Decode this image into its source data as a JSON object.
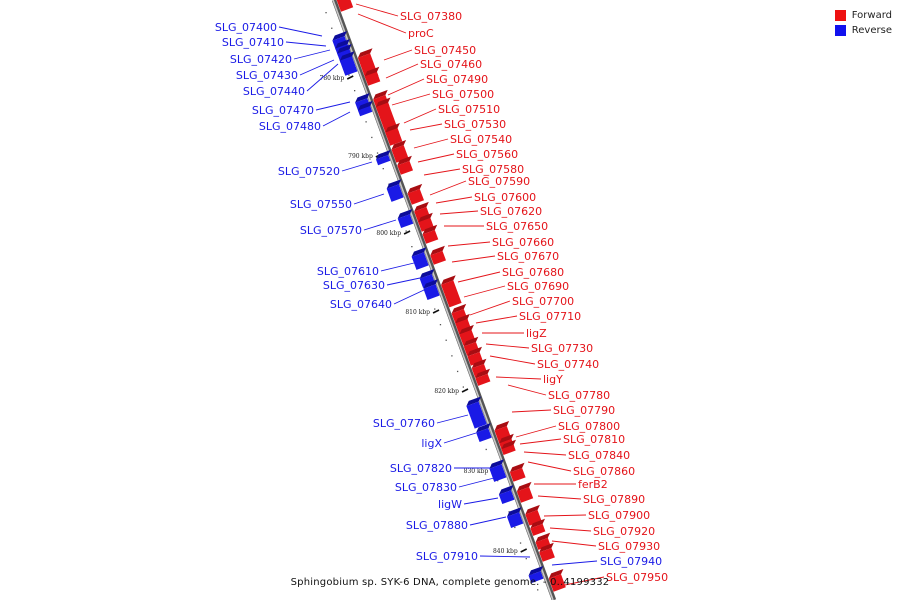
{
  "caption": "Sphingobium sp. SYK-6 DNA, complete genome. - 0..4199332",
  "legend": [
    {
      "label": "Forward",
      "color": "#ee1111"
    },
    {
      "label": "Reverse",
      "color": "#1111ee"
    }
  ],
  "colors": {
    "forward": "#e4141a",
    "reverse": "#1a1ae6",
    "backbone": "#8a8a8a"
  },
  "ticks": [
    "780 kbp",
    "790 kbp",
    "800 kbp",
    "810 kbp",
    "820 kbp",
    "830 kbp",
    "840 kbp"
  ],
  "forward_labels": [
    "SLG_07380",
    "proC",
    "SLG_07450",
    "SLG_07460",
    "SLG_07490",
    "SLG_07500",
    "SLG_07510",
    "SLG_07530",
    "SLG_07540",
    "SLG_07560",
    "SLG_07580",
    "SLG_07590",
    "SLG_07600",
    "SLG_07620",
    "SLG_07650",
    "SLG_07660",
    "SLG_07670",
    "SLG_07680",
    "SLG_07690",
    "SLG_07700",
    "SLG_07710",
    "ligZ",
    "SLG_07730",
    "SLG_07740",
    "ligY",
    "SLG_07780",
    "SLG_07790",
    "SLG_07800",
    "SLG_07810",
    "SLG_07840",
    "SLG_07860",
    "ferB2",
    "SLG_07890",
    "SLG_07900",
    "SLG_07920",
    "SLG_07930",
    "SLG_07950"
  ],
  "reverse_labels": [
    "SLG_07400",
    "SLG_07410",
    "SLG_07420",
    "SLG_07430",
    "SLG_07440",
    "SLG_07470",
    "SLG_07480",
    "SLG_07520",
    "SLG_07550",
    "SLG_07570",
    "SLG_07610",
    "SLG_07630",
    "SLG_07640",
    "SLG_07760",
    "ligX",
    "SLG_07820",
    "SLG_07830",
    "ligW",
    "SLG_07880",
    "SLG_07910",
    "SLG_07940"
  ]
}
